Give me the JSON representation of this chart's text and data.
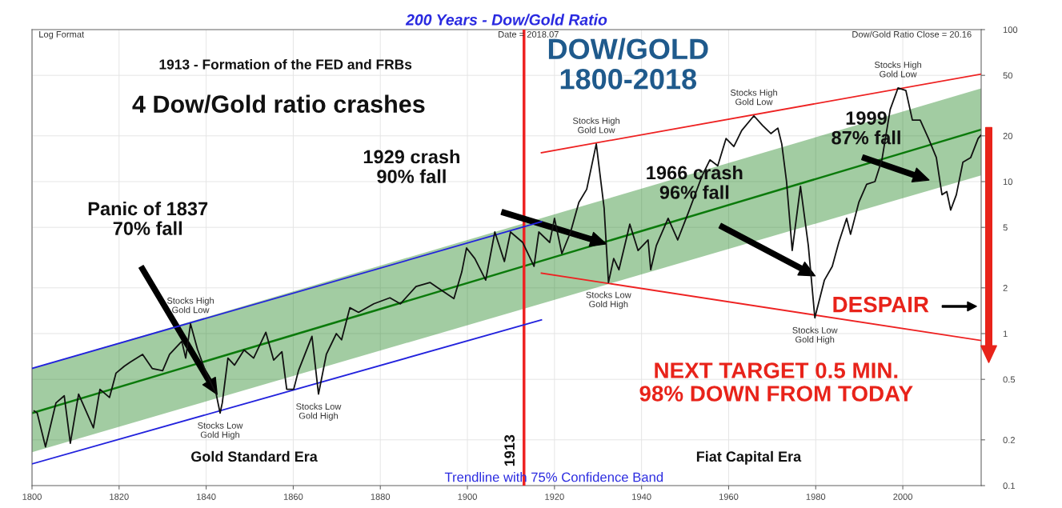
{
  "chart_data": {
    "type": "line",
    "title": "200 Years - Dow/Gold Ratio",
    "log": "y",
    "grid": true,
    "legend": false,
    "marker": "none",
    "line_style": "solid",
    "xlim": [
      1800,
      2018
    ],
    "xticks": [
      1800,
      1820,
      1840,
      1860,
      1880,
      1900,
      1920,
      1940,
      1960,
      1980,
      2000
    ],
    "ylim": [
      0.1,
      100
    ],
    "yticks": [
      0.1,
      0.2,
      0.5,
      1,
      2,
      5,
      10,
      20,
      50,
      100
    ],
    "series": [
      {
        "color": "#0b7a0b",
        "x": [
          1800,
          2018
        ],
        "values": [
          0.3,
          22
        ],
        "lower": [
          0.166,
          11
        ],
        "upper": [
          0.59,
          41
        ]
      },
      {
        "color": "#2222dd",
        "x": [
          1800,
          1917
        ],
        "values": [
          0.59,
          5.45
        ]
      },
      {
        "color": "#2222dd",
        "x": [
          1800,
          1917
        ],
        "values": [
          0.139,
          1.23
        ]
      },
      {
        "color": "#ee2222",
        "x": [
          1917,
          2018
        ],
        "values": [
          15.5,
          51
        ]
      },
      {
        "color": "#ee2222",
        "x": [
          1917,
          2018
        ],
        "values": [
          2.5,
          0.9
        ]
      },
      {
        "color": "#111111",
        "x": [
          1800.5,
          1801.2,
          1803.1,
          1805.5,
          1807.4,
          1808.8,
          1810.7,
          1814.1,
          1815.6,
          1817.8,
          1819.3,
          1821.2,
          1822.6,
          1825.4,
          1827.6,
          1830,
          1831.6,
          1834.4,
          1835.3,
          1836.4,
          1838,
          1839.8,
          1842.3,
          1843.2,
          1843.7,
          1845,
          1846.5,
          1848.7,
          1850.9,
          1853.7,
          1855.5,
          1857.4,
          1858.5,
          1860.1,
          1861.2,
          1864.3,
          1865.8,
          1867.6,
          1869.9,
          1871.1,
          1873,
          1875,
          1878.5,
          1882.2,
          1884.6,
          1888.2,
          1891.4,
          1893.2,
          1896.9,
          1898.7,
          1899.8,
          1901.7,
          1904.2,
          1906.3,
          1908.5,
          1909.9,
          1912.7,
          1915.3,
          1916.4,
          1918.9,
          1920,
          1921.7,
          1923.7,
          1925.6,
          1927.4,
          1929.6,
          1931.4,
          1932.4,
          1933.6,
          1934.8,
          1937.3,
          1939.2,
          1941.5,
          1942.1,
          1943.4,
          1946.1,
          1948.3,
          1950.7,
          1953.9,
          1955.7,
          1957.5,
          1959.4,
          1961.2,
          1963,
          1965.8,
          1967.8,
          1969.7,
          1971.3,
          1972.2,
          1973.3,
          1974.6,
          1976.5,
          1978.3,
          1979.8,
          1982,
          1983.8,
          1985.3,
          1987.1,
          1988,
          1989.9,
          1991.7,
          1993.6,
          1995.2,
          1997.1,
          1998.9,
          2000.7,
          2002.2,
          2004,
          2005.9,
          2007.7,
          2009,
          2010.1,
          2011,
          2012.3,
          2013.8,
          2015.6,
          2017.3,
          2017.9
        ],
        "values": [
          0.31,
          0.3,
          0.18,
          0.35,
          0.39,
          0.19,
          0.4,
          0.24,
          0.43,
          0.38,
          0.55,
          0.61,
          0.65,
          0.73,
          0.59,
          0.57,
          0.73,
          0.89,
          0.69,
          1.16,
          0.79,
          0.57,
          0.4,
          0.3,
          0.35,
          0.69,
          0.62,
          0.78,
          0.69,
          1.02,
          0.67,
          0.76,
          0.43,
          0.43,
          0.57,
          0.96,
          0.4,
          0.73,
          1.0,
          0.91,
          1.48,
          1.38,
          1.57,
          1.72,
          1.57,
          2.04,
          2.17,
          2.0,
          1.7,
          2.54,
          3.66,
          3.12,
          2.25,
          4.66,
          2.98,
          4.66,
          3.98,
          2.77,
          4.66,
          3.98,
          5.73,
          3.36,
          4.66,
          7.3,
          8.9,
          17.7,
          6.7,
          2.17,
          3.12,
          2.63,
          5.25,
          3.52,
          4.13,
          2.63,
          3.8,
          5.73,
          4.13,
          6.2,
          10.9,
          13.9,
          12.7,
          19.2,
          17.0,
          21.7,
          27.1,
          23.4,
          20.7,
          22.5,
          17.7,
          10,
          3.52,
          9.3,
          3.8,
          1.27,
          2.25,
          2.77,
          3.98,
          5.73,
          4.5,
          7.3,
          9.6,
          10,
          13.9,
          29.8,
          41.3,
          39.8,
          25.4,
          25.4,
          19.2,
          14.4,
          8.2,
          8.6,
          6.5,
          8.2,
          13.4,
          14.4,
          19.2,
          20.16
        ]
      }
    ],
    "ref_lines": [
      {
        "axis": "x",
        "value": 1913,
        "label": "1913",
        "color": "#ee2222"
      }
    ],
    "annotations": [
      "Log Format",
      "Date = 2018.07",
      "Dow/Gold Ratio Close = 20.16",
      "1913 - Formation of the FED and FRBs",
      "4 Dow/Gold ratio crashes",
      "DOW/GOLD\n1800-2018",
      "Panic of 1837\n70% fall",
      "1929 crash\n90% fall",
      "1966 crash\n96% fall",
      "1999\n87% fall",
      {
        "text": "Stocks High\nGold Low",
        "x": 1836.4,
        "y": 1.16
      },
      {
        "text": "Stocks Low\nGold High",
        "x": 1843.2,
        "y": 0.3
      },
      {
        "text": "Stocks Low\nGold High",
        "x": 1865.8,
        "y": 0.4
      },
      {
        "text": "Stocks High\nGold Low",
        "x": 1929.6,
        "y": 17.7
      },
      {
        "text": "Stocks Low\nGold High",
        "x": 1932.4,
        "y": 2.17
      },
      {
        "text": "Stocks High\nGold Low",
        "x": 1965.8,
        "y": 27.1
      },
      {
        "text": "Stocks Low\nGold High",
        "x": 1979.8,
        "y": 1.27
      },
      {
        "text": "Stocks High\nGold Low",
        "x": 1998.9,
        "y": 41.3
      },
      "Gold Standard Era",
      "Fiat Capital Era",
      "Trendline with 75% Confidence Band",
      "DESPAIR",
      "NEXT TARGET 0.5 MIN.\n98% DOWN FROM TODAY"
    ]
  }
}
